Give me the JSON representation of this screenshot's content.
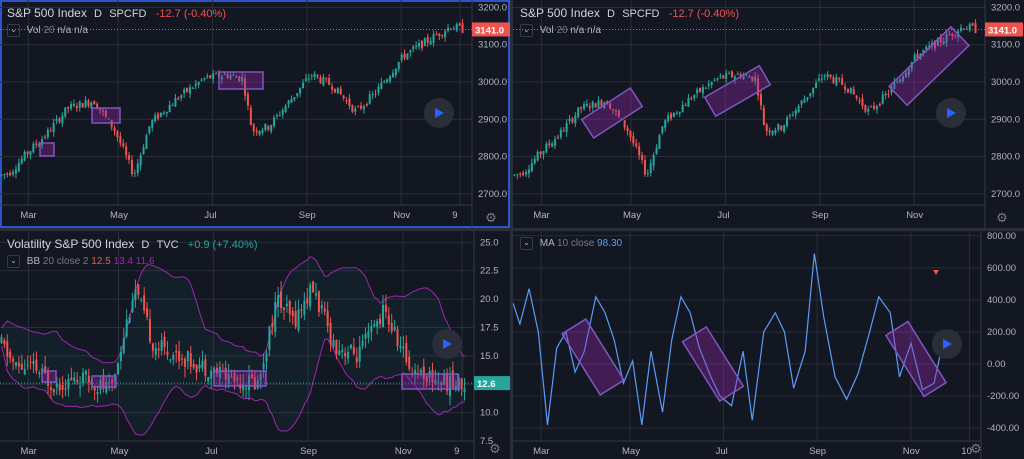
{
  "panels": {
    "tl": {
      "symbol": "S&P 500 Index",
      "interval": "D",
      "exchange": "SPCFD",
      "change": "-12.7 (-0.40%)",
      "indicator_name": "Vol",
      "indicator_params": "20",
      "indicator_values": "n/a n/a",
      "price_label": "3141.0",
      "x_ticks": [
        "Mar",
        "May",
        "Jul",
        "Sep",
        "Nov",
        "9"
      ],
      "y_ticks": [
        "3200.0",
        "3100.0",
        "3000.0",
        "2900.0",
        "2800.0",
        "2700.0"
      ]
    },
    "tr": {
      "symbol": "S&P 500 Index",
      "interval": "D",
      "exchange": "SPCFD",
      "change": "-12.7 (-0.40%)",
      "indicator_name": "Vol",
      "indicator_params": "20",
      "indicator_values": "n/a n/a",
      "price_label": "3141.0",
      "x_ticks": [
        "Mar",
        "May",
        "Jul",
        "Sep",
        "Nov"
      ],
      "y_ticks": [
        "3200.0",
        "3100.0",
        "3000.0",
        "2900.0",
        "2800.0",
        "2700.0"
      ]
    },
    "bl": {
      "symbol": "Volatility S&P 500 Index",
      "interval": "D",
      "exchange": "TVC",
      "change": "+0.9 (+7.40%)",
      "indicator_name": "BB",
      "indicator_params": "20 close 2",
      "bb_values": [
        "12.5",
        "13.4",
        "11.6"
      ],
      "price_label": "12.6",
      "x_ticks": [
        "Mar",
        "May",
        "Jul",
        "Sep",
        "Nov",
        "9"
      ],
      "y_ticks": [
        "25.0",
        "22.5",
        "20.0",
        "17.5",
        "15.0",
        "12.5",
        "10.0",
        "7.5"
      ]
    },
    "br": {
      "indicator_name": "MA",
      "indicator_params": "10 close",
      "ma_value": "98.30",
      "x_ticks": [
        "Mar",
        "May",
        "Jul",
        "Sep",
        "Nov",
        "10"
      ],
      "y_ticks": [
        "800.00",
        "600.00",
        "400.00",
        "200.00",
        "0.00",
        "-200.00",
        "-400.00"
      ]
    }
  },
  "colors": {
    "up": "#26a69a",
    "down": "#ef5350",
    "highlight_fill": "#9c27b0",
    "highlight_stroke": "#7e57c2",
    "ma_line": "#5b9cf6",
    "bb_band": "#9c27b0",
    "price_tag": "#ef5350"
  },
  "chart_data": [
    {
      "type": "candlestick",
      "title": "S&P 500 Index",
      "ylim": [
        2670,
        3220
      ],
      "x_labels": [
        "Mar",
        "May",
        "Jul",
        "Sep",
        "Nov",
        "9"
      ],
      "anchors": [
        [
          0,
          2750
        ],
        [
          8,
          2760
        ],
        [
          22,
          2810
        ],
        [
          38,
          2860
        ],
        [
          56,
          2930
        ],
        [
          78,
          2950
        ],
        [
          96,
          2870
        ],
        [
          112,
          2750
        ],
        [
          126,
          2890
        ],
        [
          150,
          2960
        ],
        [
          172,
          3010
        ],
        [
          190,
          3020
        ],
        [
          204,
          3010
        ],
        [
          212,
          2870
        ],
        [
          226,
          2880
        ],
        [
          244,
          2950
        ],
        [
          262,
          3020
        ],
        [
          280,
          2990
        ],
        [
          300,
          2920
        ],
        [
          316,
          2970
        ],
        [
          340,
          3070
        ],
        [
          360,
          3110
        ],
        [
          380,
          3150
        ],
        [
          390,
          3141
        ]
      ],
      "last": 3141.0
    },
    {
      "type": "candlestick",
      "title": "Volatility S&P 500 Index",
      "ylim": [
        7.5,
        26
      ],
      "x_labels": [
        "Mar",
        "May",
        "Jul",
        "Sep",
        "Nov",
        "9"
      ],
      "anchors": [
        [
          0,
          16
        ],
        [
          12,
          14
        ],
        [
          26,
          14
        ],
        [
          44,
          12.5
        ],
        [
          70,
          13
        ],
        [
          92,
          12
        ],
        [
          112,
          21
        ],
        [
          128,
          16
        ],
        [
          150,
          15
        ],
        [
          172,
          14
        ],
        [
          196,
          13
        ],
        [
          216,
          12.6
        ],
        [
          232,
          20
        ],
        [
          246,
          18
        ],
        [
          262,
          21
        ],
        [
          280,
          16
        ],
        [
          300,
          15
        ],
        [
          322,
          19
        ],
        [
          344,
          14
        ],
        [
          364,
          13
        ],
        [
          380,
          12.5
        ],
        [
          390,
          12.6
        ]
      ],
      "last": 12.6
    },
    {
      "type": "line",
      "title": "MA 10 close",
      "ylim": [
        -480,
        830
      ],
      "x_labels": [
        "Mar",
        "May",
        "Jul",
        "Sep",
        "Nov",
        "10"
      ],
      "points": [
        [
          0,
          380
        ],
        [
          6,
          250
        ],
        [
          14,
          470
        ],
        [
          22,
          200
        ],
        [
          30,
          -380
        ],
        [
          38,
          100
        ],
        [
          46,
          200
        ],
        [
          54,
          -50
        ],
        [
          62,
          80
        ],
        [
          72,
          420
        ],
        [
          80,
          320
        ],
        [
          88,
          150
        ],
        [
          96,
          -120
        ],
        [
          104,
          20
        ],
        [
          112,
          -380
        ],
        [
          120,
          80
        ],
        [
          130,
          -300
        ],
        [
          138,
          150
        ],
        [
          146,
          420
        ],
        [
          154,
          320
        ],
        [
          162,
          100
        ],
        [
          172,
          -80
        ],
        [
          180,
          -200
        ],
        [
          190,
          -260
        ],
        [
          200,
          80
        ],
        [
          208,
          -350
        ],
        [
          218,
          200
        ],
        [
          228,
          320
        ],
        [
          236,
          200
        ],
        [
          244,
          -150
        ],
        [
          254,
          80
        ],
        [
          262,
          690
        ],
        [
          270,
          300
        ],
        [
          280,
          -80
        ],
        [
          290,
          -220
        ],
        [
          300,
          -60
        ],
        [
          310,
          200
        ],
        [
          318,
          420
        ],
        [
          328,
          320
        ],
        [
          336,
          -80
        ],
        [
          346,
          130
        ],
        [
          356,
          -160
        ],
        [
          366,
          -120
        ],
        [
          376,
          210
        ],
        [
          386,
          150
        ]
      ]
    }
  ]
}
